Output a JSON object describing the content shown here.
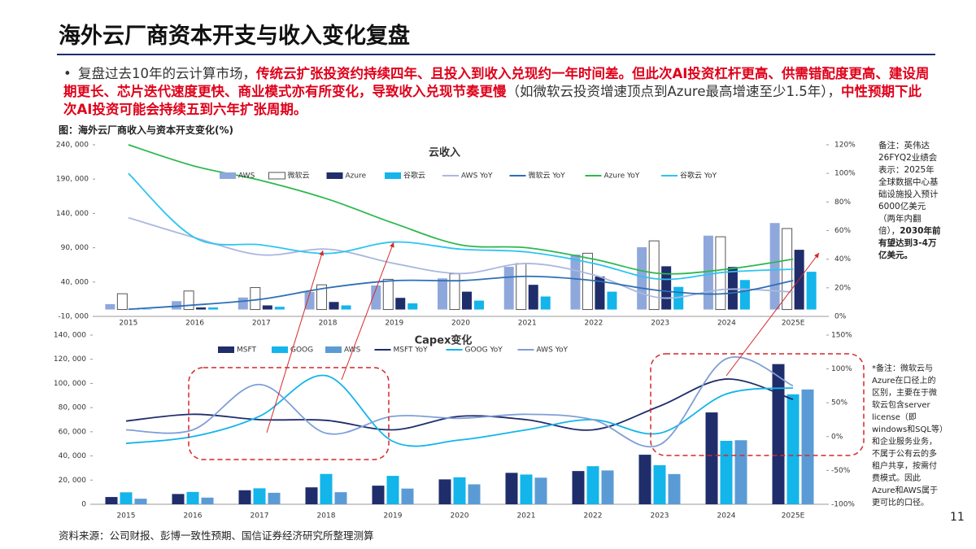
{
  "header": {
    "title": "海外云厂商资本开支与收入变化复盘"
  },
  "bullet": [
    {
      "text": "复盘过去10年的云计算市场，",
      "emphasis": false
    },
    {
      "text": "传统云扩张投资约持续四年、且投入到收入兑现约一年时间差。但此次AI投资杠杆更高、供需错配度更高、建设周期更长、芯片迭代速度更快、商业模式亦有所变化，导致收入兑现节奏更慢",
      "emphasis": true
    },
    {
      "text": "（如微软云投资增速顶点到Azure最高增速至少1.5年），",
      "emphasis": false
    },
    {
      "text": "中性预期下此次AI投资可能会持续五到六年扩张周期。",
      "emphasis": true
    }
  ],
  "figure_caption": "图：海外云厂商收入与资本开支变化(%)",
  "chart_data": [
    {
      "type": "bar",
      "title": "云收入",
      "categories": [
        "2015",
        "2016",
        "2017",
        "2018",
        "2019",
        "2020",
        "2021",
        "2022",
        "2023",
        "2024",
        "2025E"
      ],
      "ylim": [
        -10000,
        240000
      ],
      "yticks": [
        {
          "value": -10000,
          "label": "-10, 000"
        },
        {
          "value": 40000,
          "label": "40, 000"
        },
        {
          "value": 90000,
          "label": "90, 000"
        },
        {
          "value": 140000,
          "label": "140, 000"
        },
        {
          "value": 190000,
          "label": "190, 000"
        },
        {
          "value": 240000,
          "label": "240, 000"
        }
      ],
      "y2lim": [
        0,
        120
      ],
      "y2ticks": [
        {
          "value": 0,
          "label": "0%"
        },
        {
          "value": 20,
          "label": "20%"
        },
        {
          "value": 40,
          "label": "40%"
        },
        {
          "value": 60,
          "label": "60%"
        },
        {
          "value": 80,
          "label": "80%"
        },
        {
          "value": 100,
          "label": "100%"
        },
        {
          "value": 120,
          "label": "120%"
        }
      ],
      "series": [
        {
          "name": "AWS",
          "kind": "bar",
          "color": "#8fa8dc",
          "values": [
            7900,
            12200,
            17500,
            25600,
            35000,
            45400,
            62200,
            80100,
            90800,
            107600,
            126000
          ]
        },
        {
          "name": "微软云",
          "kind": "bar",
          "color": "#ffffff",
          "outline": "#555555",
          "values": [
            23000,
            27000,
            32000,
            36000,
            44000,
            52000,
            67000,
            82000,
            100000,
            106000,
            118000
          ]
        },
        {
          "name": "Azure",
          "kind": "bar",
          "color": "#1f2d6b",
          "values": [
            1000,
            3000,
            6000,
            11000,
            17000,
            26000,
            36000,
            48000,
            63000,
            62000,
            87000
          ]
        },
        {
          "name": "谷歌云",
          "kind": "bar",
          "color": "#13b5ea",
          "values": [
            500,
            3000,
            4000,
            6000,
            9000,
            13000,
            19000,
            26000,
            33000,
            43000,
            55000
          ]
        },
        {
          "name": "AWS YoY",
          "kind": "line",
          "axis": "y2",
          "color": "#aab8e0",
          "values": [
            69,
            55,
            43,
            47,
            37,
            30,
            37,
            29,
            13,
            19,
            17
          ]
        },
        {
          "name": "微软云 YoY",
          "kind": "line",
          "axis": "y2",
          "color": "#2e6fb5",
          "values": [
            5,
            8,
            12,
            20,
            25,
            25,
            28,
            25,
            18,
            16,
            25
          ]
        },
        {
          "name": "Azure YoY",
          "kind": "line",
          "axis": "y2",
          "color": "#2db84d",
          "values": [
            120,
            105,
            95,
            82,
            65,
            50,
            48,
            40,
            30,
            33,
            40
          ]
        },
        {
          "name": "谷歌云 YoY",
          "kind": "line",
          "axis": "y2",
          "color": "#2ec4f0",
          "values": [
            100,
            55,
            50,
            44,
            52,
            47,
            45,
            37,
            26,
            31,
            33
          ]
        }
      ],
      "note": [
        "备注：英伟达26FYQ2业绩会表示：2025年全球数据中心基础设施投入预计6000亿美元（两年内翻倍），",
        "2030年前有望达到3-4万亿美元。"
      ]
    },
    {
      "type": "bar",
      "title": "Capex变化",
      "categories": [
        "2015",
        "2016",
        "2017",
        "2018",
        "2019",
        "2020",
        "2021",
        "2022",
        "2023",
        "2024",
        "2025E"
      ],
      "ylim": [
        0,
        140000
      ],
      "yticks": [
        {
          "value": 0,
          "label": "0"
        },
        {
          "value": 20000,
          "label": "20, 000"
        },
        {
          "value": 40000,
          "label": "40, 000"
        },
        {
          "value": 60000,
          "label": "60, 000"
        },
        {
          "value": 80000,
          "label": "80, 000"
        },
        {
          "value": 100000,
          "label": "100, 000"
        },
        {
          "value": 120000,
          "label": "120, 000"
        },
        {
          "value": 140000,
          "label": "140, 000"
        }
      ],
      "y2lim": [
        -100,
        150
      ],
      "y2ticks": [
        {
          "value": -100,
          "label": "-100%"
        },
        {
          "value": -50,
          "label": "-50%"
        },
        {
          "value": 0,
          "label": "0%"
        },
        {
          "value": 50,
          "label": "50%"
        },
        {
          "value": 100,
          "label": "100%"
        },
        {
          "value": 150,
          "label": "150%"
        }
      ],
      "series": [
        {
          "name": "MSFT",
          "kind": "bar",
          "color": "#1f2d6b",
          "values": [
            6000,
            8500,
            11600,
            14000,
            15400,
            20600,
            26000,
            27500,
            41000,
            76000,
            116000
          ]
        },
        {
          "name": "GOOG",
          "kind": "bar",
          "color": "#13b5ea",
          "values": [
            9900,
            10200,
            13200,
            25100,
            23500,
            22300,
            24600,
            31500,
            32300,
            52500,
            91000
          ]
        },
        {
          "name": "AWS",
          "kind": "bar",
          "color": "#5b9bd5",
          "values": [
            4600,
            5500,
            9500,
            10000,
            13000,
            16500,
            22000,
            28000,
            25000,
            53000,
            95000
          ]
        },
        {
          "name": "MSFT YoY",
          "kind": "line",
          "axis": "y2",
          "color": "#1f2d6b",
          "values": [
            23,
            33,
            25,
            24,
            10,
            30,
            25,
            10,
            45,
            85,
            55
          ]
        },
        {
          "name": "GOOG YoY",
          "kind": "line",
          "axis": "y2",
          "color": "#13b5ea",
          "values": [
            -10,
            0,
            30,
            90,
            -7,
            -5,
            10,
            25,
            5,
            63,
            72
          ]
        },
        {
          "name": "AWS YoY",
          "kind": "line",
          "axis": "y2",
          "color": "#7f9fd6",
          "values": [
            10,
            10,
            77,
            5,
            30,
            27,
            33,
            25,
            -12,
            115,
            75
          ]
        }
      ],
      "note": [
        "*备注：微软云与Azure在口径上的区别，主要在于微软云包含server license（即windows和SQL等）和企业服务业务，不属于公有云的多租户共享，按需付费模式。因此Azure和AWS属于更可比的口径。"
      ]
    }
  ],
  "source": "资料来源：公司财报、彭博一致性预期、国信证券经济研究所整理测算",
  "page_number": "11"
}
